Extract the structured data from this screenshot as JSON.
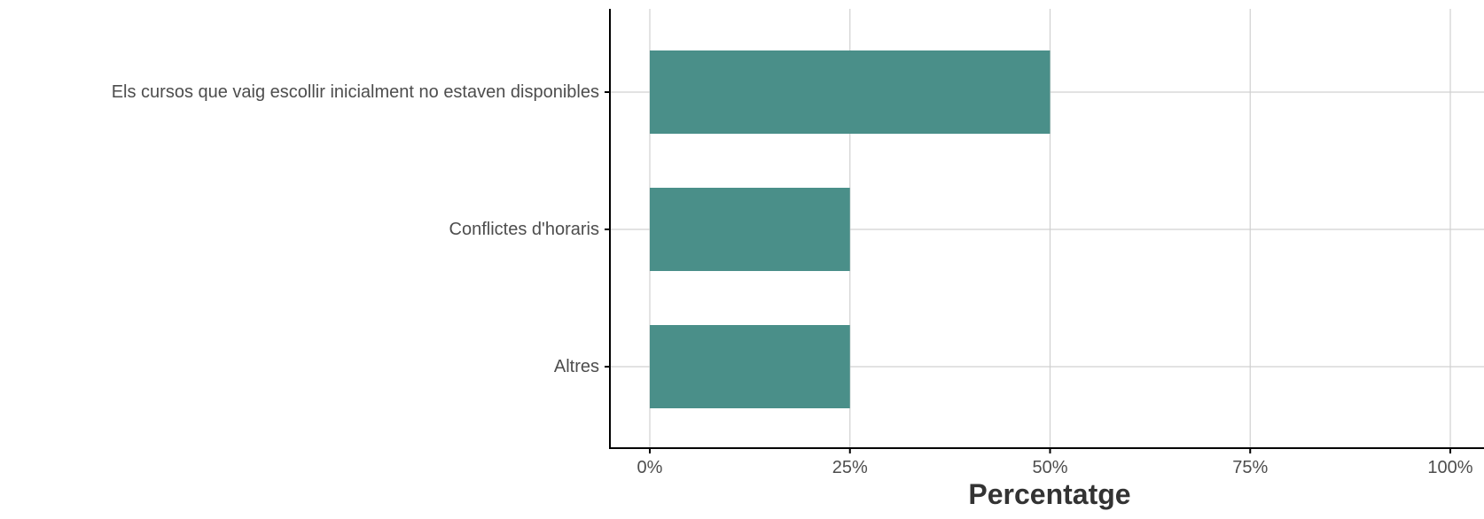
{
  "chart_data": {
    "type": "bar",
    "orientation": "horizontal",
    "categories": [
      "Els cursos que vaig escollir inicialment no estaven disponibles",
      "Conflictes d'horaris",
      "Altres"
    ],
    "values": [
      50,
      25,
      25
    ],
    "value_unit": "%",
    "xlabel": "Percentatge",
    "ylabel": "",
    "xlim": [
      0,
      100
    ],
    "xticks": [
      0,
      25,
      50,
      75,
      100
    ],
    "xtick_labels": [
      "0%",
      "25%",
      "50%",
      "75%",
      "100%"
    ],
    "bar_color": "#4a8f89",
    "grid": true,
    "legend": "none"
  }
}
